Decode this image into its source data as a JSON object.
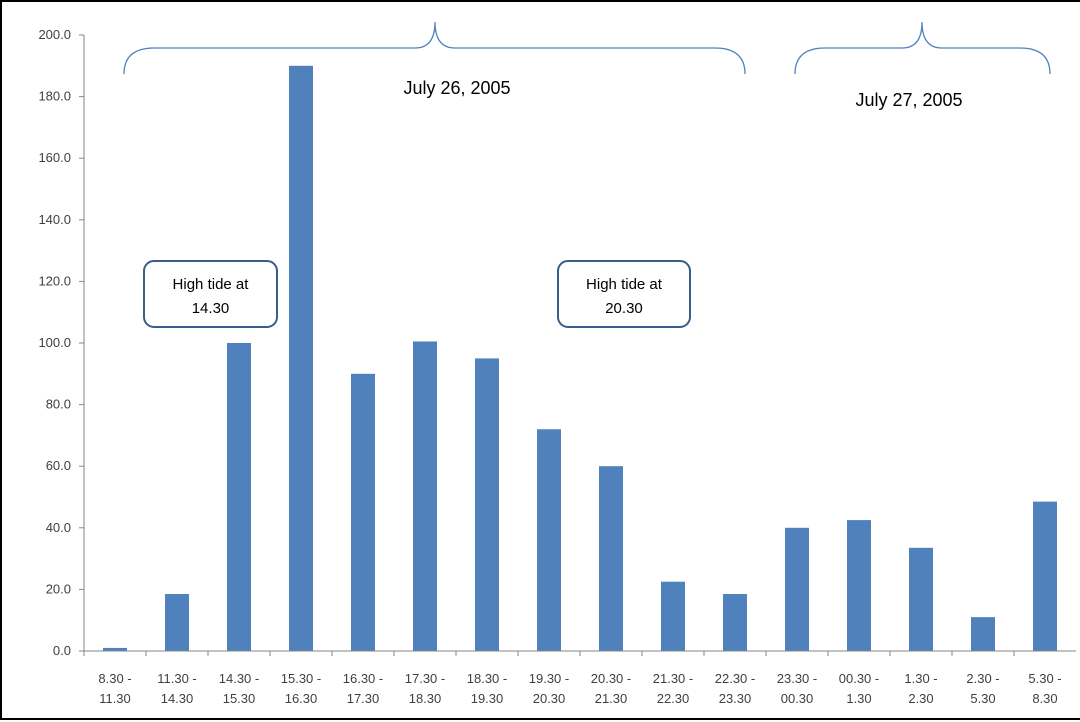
{
  "chart_data": {
    "type": "bar",
    "title": "",
    "xlabel": "",
    "ylabel": "",
    "ylim": [
      0,
      200
    ],
    "ytick_step": 20,
    "ytick_labels": [
      "0.0",
      "20.0",
      "40.0",
      "60.0",
      "80.0",
      "100.0",
      "120.0",
      "140.0",
      "160.0",
      "180.0",
      "200.0"
    ],
    "grid": false,
    "legend": "none",
    "bar_color": "#4f81bd",
    "categories": [
      [
        "8.30 -",
        "11.30"
      ],
      [
        "11.30 -",
        "14.30"
      ],
      [
        "14.30 -",
        "15.30"
      ],
      [
        "15.30 -",
        "16.30"
      ],
      [
        "16.30 -",
        "17.30"
      ],
      [
        "17.30 -",
        "18.30"
      ],
      [
        "18.30 -",
        "19.30"
      ],
      [
        "19.30 -",
        "20.30"
      ],
      [
        "20.30 -",
        "21.30"
      ],
      [
        "21.30 -",
        "22.30"
      ],
      [
        "22.30 -",
        "23.30"
      ],
      [
        "23.30 -",
        "00.30"
      ],
      [
        "00.30 -",
        "1.30"
      ],
      [
        "1.30 -",
        "2.30"
      ],
      [
        "2.30 -",
        "5.30"
      ],
      [
        "5.30 -",
        "8.30"
      ]
    ],
    "values": [
      1.0,
      18.5,
      100.0,
      190.0,
      90.0,
      100.5,
      95.0,
      72.0,
      60.0,
      22.5,
      18.5,
      40.0,
      42.5,
      33.5,
      11.0,
      48.5
    ],
    "annotations": [
      {
        "text_lines": [
          "High tide at",
          "14.30"
        ],
        "near_category": 1
      },
      {
        "text_lines": [
          "High tide at",
          "20.30"
        ],
        "near_category": 8
      }
    ],
    "date_groups": [
      {
        "label": "July 26, 2005",
        "from_category": 0,
        "to_category": 10
      },
      {
        "label": "July 27, 2005",
        "from_category": 11,
        "to_category": 15
      }
    ]
  }
}
